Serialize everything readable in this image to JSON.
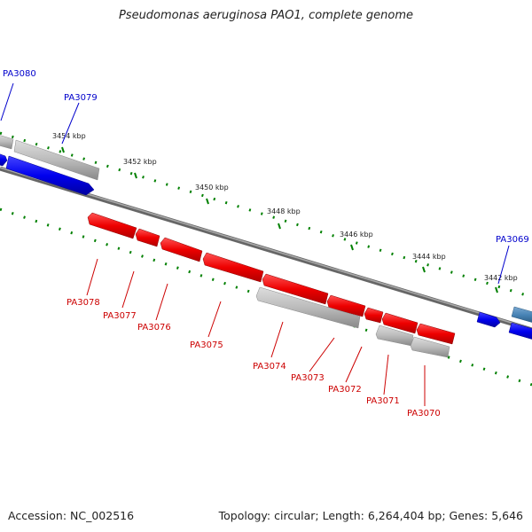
{
  "title": "Pseudomonas aeruginosa PAO1, complete genome",
  "footer": {
    "accession": "Accession: NC_002516",
    "summary": "Topology: circular; Length: 6,264,404 bp; Genes: 5,646"
  },
  "colors": {
    "forward_gene": "#0000ee",
    "reverse_gene": "#ee0000",
    "other_gene": "#bbbbbb",
    "highlight_gene": "#4682b4",
    "tick": "#008000",
    "backbone": "#888888",
    "forward_label": "#0000cc",
    "reverse_label": "#cc0000"
  },
  "axis": {
    "unit": "kbp",
    "ticks": [
      {
        "kbp": 3454,
        "label": "3454 kbp"
      },
      {
        "kbp": 3452,
        "label": "3452 kbp"
      },
      {
        "kbp": 3450,
        "label": "3450 kbp"
      },
      {
        "kbp": 3448,
        "label": "3448 kbp"
      },
      {
        "kbp": 3446,
        "label": "3446 kbp"
      },
      {
        "kbp": 3444,
        "label": "3444 kbp"
      },
      {
        "kbp": 3442,
        "label": "3442 kbp"
      }
    ]
  },
  "genes": {
    "forward": [
      {
        "name": "PA3080",
        "labeled": true
      },
      {
        "name": "PA3079",
        "labeled": true
      },
      {
        "name": "PA3069",
        "labeled": true
      }
    ],
    "reverse": [
      {
        "name": "PA3078"
      },
      {
        "name": "PA3077"
      },
      {
        "name": "PA3076"
      },
      {
        "name": "PA3075"
      },
      {
        "name": "PA3074"
      },
      {
        "name": "PA3073"
      },
      {
        "name": "PA3072"
      },
      {
        "name": "PA3071"
      },
      {
        "name": "PA3070"
      }
    ]
  }
}
